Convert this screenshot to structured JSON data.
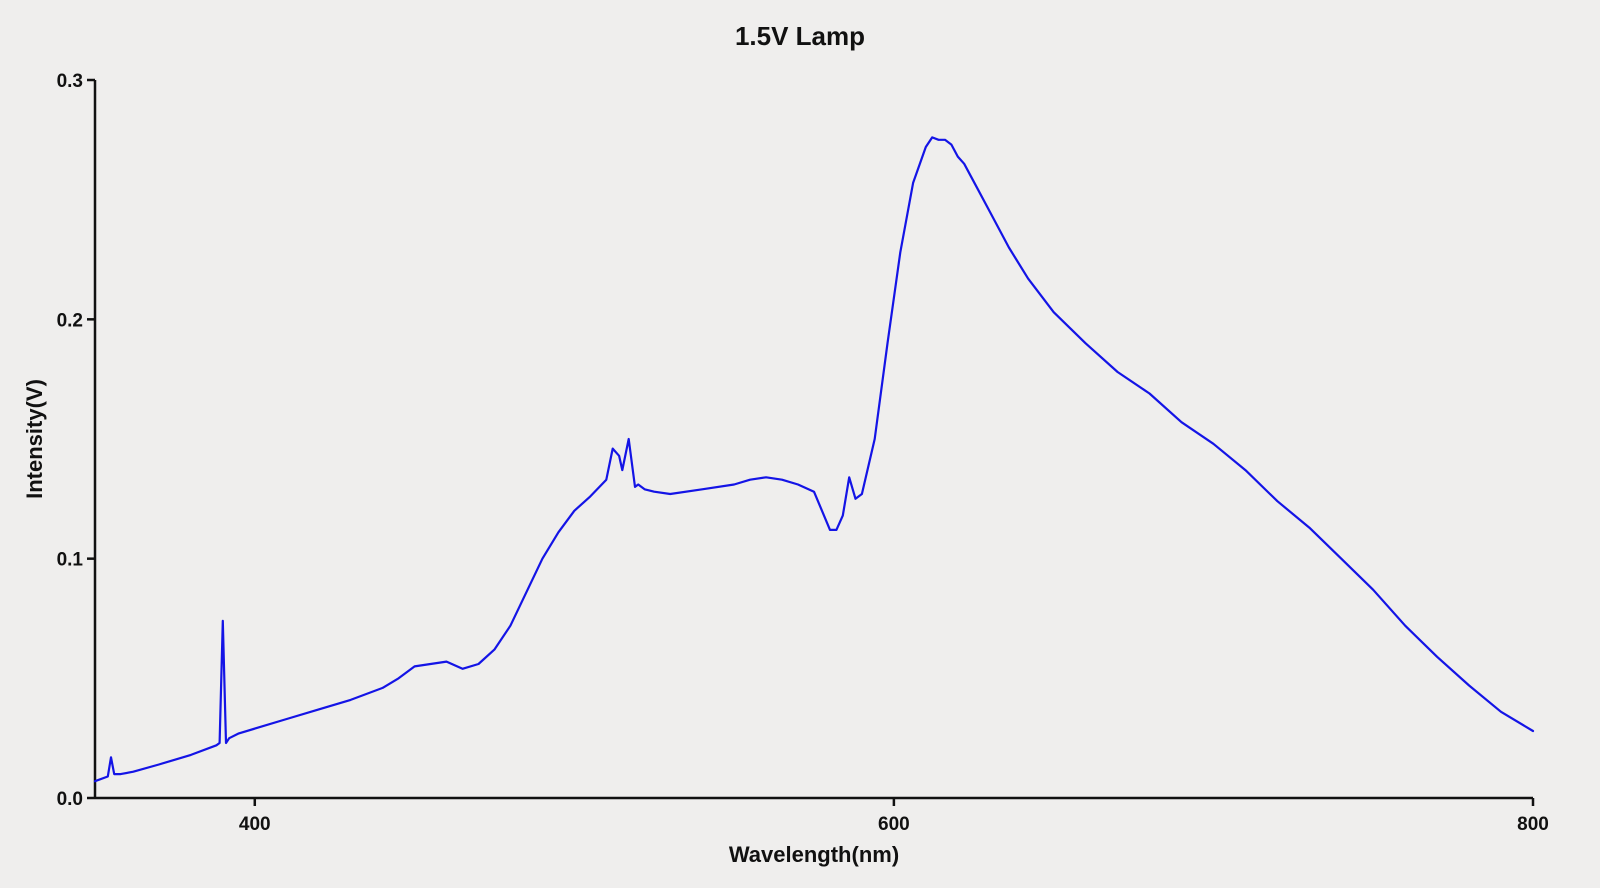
{
  "chart_data": {
    "type": "line",
    "title": "1.5V Lamp",
    "xlabel": "Wavelength(nm)",
    "ylabel": "Intensity(V)",
    "xlim": [
      350,
      800
    ],
    "ylim": [
      0.0,
      0.3
    ],
    "xticks": [
      400,
      600,
      800
    ],
    "yticks": [
      0.0,
      0.1,
      0.2,
      0.3
    ],
    "xtick_labels": [
      "400",
      "600",
      "800"
    ],
    "ytick_labels": [
      "0.0",
      "0.1",
      "0.2",
      "0.3"
    ],
    "grid": false,
    "color": "#1414e6",
    "series": [
      {
        "x": [
          350,
          354,
          355,
          356,
          358,
          362,
          370,
          380,
          388,
          389,
          390,
          391,
          392,
          395,
          400,
          410,
          420,
          430,
          440,
          445,
          450,
          455,
          460,
          465,
          470,
          475,
          480,
          485,
          490,
          495,
          500,
          505,
          510,
          512,
          514,
          515,
          517,
          519,
          520,
          522,
          525,
          530,
          540,
          550,
          555,
          560,
          565,
          570,
          575,
          580,
          582,
          584,
          586,
          588,
          590,
          594,
          598,
          602,
          606,
          610,
          612,
          614,
          616,
          618,
          620,
          622,
          626,
          630,
          636,
          642,
          650,
          660,
          670,
          680,
          690,
          700,
          710,
          720,
          730,
          740,
          750,
          760,
          770,
          780,
          790,
          800
        ],
        "y": [
          0.007,
          0.009,
          0.017,
          0.01,
          0.01,
          0.011,
          0.014,
          0.018,
          0.022,
          0.023,
          0.074,
          0.023,
          0.025,
          0.027,
          0.029,
          0.033,
          0.037,
          0.041,
          0.046,
          0.05,
          0.055,
          0.056,
          0.057,
          0.054,
          0.056,
          0.062,
          0.072,
          0.086,
          0.1,
          0.111,
          0.12,
          0.126,
          0.133,
          0.146,
          0.143,
          0.137,
          0.15,
          0.13,
          0.131,
          0.129,
          0.128,
          0.127,
          0.129,
          0.131,
          0.133,
          0.134,
          0.133,
          0.131,
          0.128,
          0.112,
          0.112,
          0.118,
          0.134,
          0.125,
          0.127,
          0.15,
          0.19,
          0.228,
          0.257,
          0.272,
          0.276,
          0.275,
          0.275,
          0.273,
          0.268,
          0.265,
          0.255,
          0.245,
          0.23,
          0.217,
          0.203,
          0.19,
          0.178,
          0.169,
          0.157,
          0.148,
          0.137,
          0.124,
          0.113,
          0.1,
          0.087,
          0.072,
          0.059,
          0.047,
          0.036,
          0.028
        ]
      }
    ]
  }
}
